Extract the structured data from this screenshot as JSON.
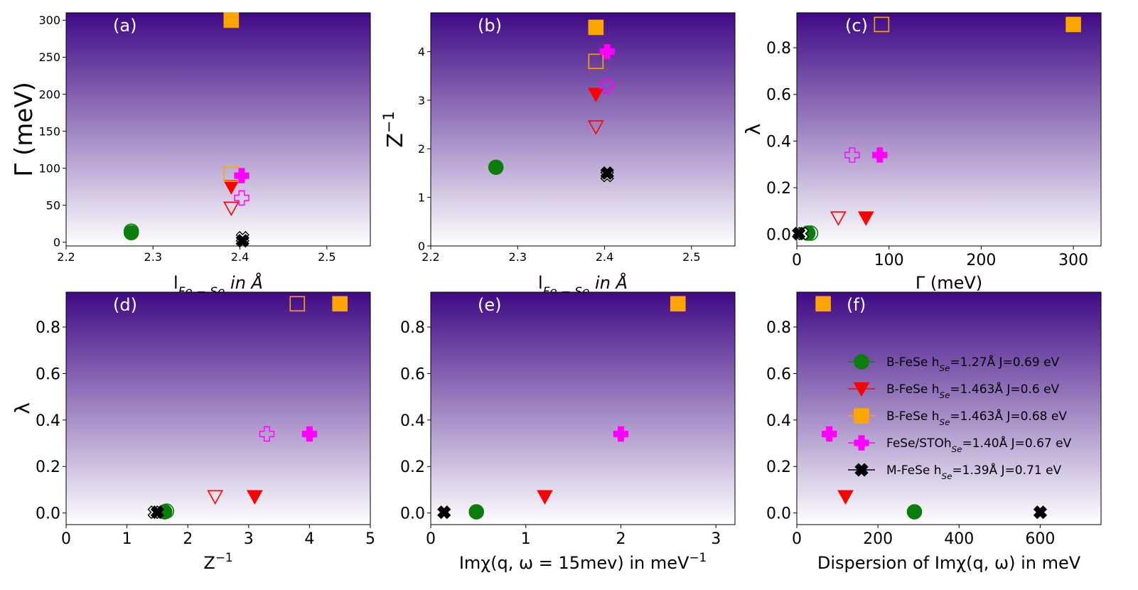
{
  "figure": {
    "gradient": {
      "top": "#3f0a85",
      "bottom": "#ffffff"
    },
    "marker_styles": {
      "green": {
        "shape": "circle",
        "color": "#0a7d0a"
      },
      "red": {
        "shape": "triangle-down",
        "color": "#ff0000"
      },
      "orange": {
        "shape": "square",
        "color": "#ffa500"
      },
      "magenta": {
        "shape": "plus",
        "color": "#ff00ff"
      },
      "black": {
        "shape": "x",
        "color": "#000000"
      }
    }
  },
  "legend": {
    "entries": [
      {
        "style": "green",
        "text": "B-FeSe h",
        "sub": "Se",
        "rest": "=1.27Å J=0.69 eV"
      },
      {
        "style": "red",
        "text": "B-FeSe h",
        "sub": "Se",
        "rest": "=1.463Å J=0.6 eV"
      },
      {
        "style": "orange",
        "text": "B-FeSe h",
        "sub": "Se",
        "rest": "=1.463Å J=0.68 eV"
      },
      {
        "style": "magenta",
        "text": "FeSe/STOh",
        "sub": "Se",
        "rest": "=1.40Å J=0.67 eV"
      },
      {
        "style": "black",
        "text": "M-FeSe h",
        "sub": "Se",
        "rest": "=1.39Å J=0.71 eV"
      }
    ]
  },
  "chart_data": [
    {
      "type": "scatter",
      "label": "(a)",
      "xlabel": "l",
      "xlabel_sub": "Fe − Se",
      "xlabel_rest": "in Å",
      "ylabel": "Γ (meV)",
      "xlim": [
        2.2,
        2.55
      ],
      "ylim": [
        -5,
        310
      ],
      "xticks": [
        "2.2",
        "2.3",
        "2.4",
        "2.5"
      ],
      "yticks": [
        "0",
        "50",
        "100",
        "150",
        "200",
        "250",
        "300"
      ],
      "points": [
        {
          "x": 2.275,
          "y": 15,
          "style": "green",
          "filled": false
        },
        {
          "x": 2.275,
          "y": 13,
          "style": "green",
          "filled": true
        },
        {
          "x": 2.39,
          "y": 46,
          "style": "red",
          "filled": false
        },
        {
          "x": 2.39,
          "y": 75,
          "style": "red",
          "filled": true
        },
        {
          "x": 2.39,
          "y": 92,
          "style": "orange",
          "filled": false
        },
        {
          "x": 2.39,
          "y": 300,
          "style": "orange",
          "filled": true
        },
        {
          "x": 2.402,
          "y": 60,
          "style": "magenta",
          "filled": false
        },
        {
          "x": 2.402,
          "y": 90,
          "style": "magenta",
          "filled": true
        },
        {
          "x": 2.403,
          "y": 6,
          "style": "black",
          "filled": false
        },
        {
          "x": 2.403,
          "y": 2,
          "style": "black",
          "filled": true
        }
      ]
    },
    {
      "type": "scatter",
      "label": "(b)",
      "xlabel": "l",
      "xlabel_sub": "Fe − Se",
      "xlabel_rest": "in Å",
      "ylabel": "Z",
      "ylabel_sup": "−1",
      "xlim": [
        2.2,
        2.55
      ],
      "ylim": [
        0,
        4.8
      ],
      "xticks": [
        "2.2",
        "2.3",
        "2.4",
        "2.5"
      ],
      "yticks": [
        "0",
        "1",
        "2",
        "3",
        "4"
      ],
      "points": [
        {
          "x": 2.275,
          "y": 1.62,
          "style": "green",
          "filled": true
        },
        {
          "x": 2.39,
          "y": 2.45,
          "style": "red",
          "filled": false
        },
        {
          "x": 2.39,
          "y": 3.12,
          "style": "red",
          "filled": true
        },
        {
          "x": 2.39,
          "y": 3.8,
          "style": "orange",
          "filled": false
        },
        {
          "x": 2.39,
          "y": 4.5,
          "style": "orange",
          "filled": true
        },
        {
          "x": 2.403,
          "y": 3.3,
          "style": "magenta",
          "filled": false
        },
        {
          "x": 2.403,
          "y": 4.0,
          "style": "magenta",
          "filled": true
        },
        {
          "x": 2.403,
          "y": 1.45,
          "style": "black",
          "filled": false
        },
        {
          "x": 2.403,
          "y": 1.5,
          "style": "black",
          "filled": true
        }
      ]
    },
    {
      "type": "scatter",
      "label": "(c)",
      "xlabel": "Γ (meV)",
      "ylabel": "λ",
      "xlim": [
        0,
        330
      ],
      "ylim": [
        -0.05,
        0.95
      ],
      "xticks": [
        "0",
        "100",
        "200",
        "300"
      ],
      "yticks": [
        "0.0",
        "0.2",
        "0.4",
        "0.6",
        "0.8"
      ],
      "points": [
        {
          "x": 15,
          "y": 0.005,
          "style": "green",
          "filled": false
        },
        {
          "x": 12,
          "y": 0.005,
          "style": "green",
          "filled": true
        },
        {
          "x": 45,
          "y": 0.07,
          "style": "red",
          "filled": false
        },
        {
          "x": 75,
          "y": 0.07,
          "style": "red",
          "filled": true
        },
        {
          "x": 92,
          "y": 0.9,
          "style": "orange",
          "filled": false
        },
        {
          "x": 300,
          "y": 0.9,
          "style": "orange",
          "filled": true
        },
        {
          "x": 60,
          "y": 0.34,
          "style": "magenta",
          "filled": false
        },
        {
          "x": 90,
          "y": 0.34,
          "style": "magenta",
          "filled": true
        },
        {
          "x": 6,
          "y": 0.003,
          "style": "black",
          "filled": false
        },
        {
          "x": 2,
          "y": 0.003,
          "style": "black",
          "filled": true
        }
      ]
    },
    {
      "type": "scatter",
      "label": "(d)",
      "xlabel": "Z",
      "xlabel_sup": "−1",
      "ylabel": "λ",
      "xlim": [
        0,
        5
      ],
      "ylim": [
        -0.05,
        0.95
      ],
      "xticks": [
        "0",
        "1",
        "2",
        "3",
        "4",
        "5"
      ],
      "yticks": [
        "0.0",
        "0.2",
        "0.4",
        "0.6",
        "0.8"
      ],
      "points": [
        {
          "x": 1.65,
          "y": 0.008,
          "style": "green",
          "filled": false
        },
        {
          "x": 1.62,
          "y": 0.005,
          "style": "green",
          "filled": true
        },
        {
          "x": 2.45,
          "y": 0.07,
          "style": "red",
          "filled": false
        },
        {
          "x": 3.1,
          "y": 0.07,
          "style": "red",
          "filled": true
        },
        {
          "x": 3.8,
          "y": 0.9,
          "style": "orange",
          "filled": false
        },
        {
          "x": 4.5,
          "y": 0.9,
          "style": "orange",
          "filled": true
        },
        {
          "x": 3.3,
          "y": 0.34,
          "style": "magenta",
          "filled": false
        },
        {
          "x": 4.0,
          "y": 0.34,
          "style": "magenta",
          "filled": true
        },
        {
          "x": 1.45,
          "y": 0.003,
          "style": "black",
          "filled": false
        },
        {
          "x": 1.5,
          "y": 0.003,
          "style": "black",
          "filled": true
        }
      ]
    },
    {
      "type": "scatter",
      "label": "(e)",
      "xlabel": "Imχ(q, ω = 15mev) in meV",
      "xlabel_sup": "−1",
      "ylabel": "",
      "xlim": [
        0,
        3.2
      ],
      "ylim": [
        -0.05,
        0.95
      ],
      "xticks": [
        "0",
        "1",
        "2",
        "3"
      ],
      "yticks": [
        "0.0",
        "0.2",
        "0.4",
        "0.6",
        "0.8"
      ],
      "points": [
        {
          "x": 0.48,
          "y": 0.005,
          "style": "green",
          "filled": true
        },
        {
          "x": 1.2,
          "y": 0.07,
          "style": "red",
          "filled": true
        },
        {
          "x": 2.6,
          "y": 0.9,
          "style": "orange",
          "filled": true
        },
        {
          "x": 2.0,
          "y": 0.34,
          "style": "magenta",
          "filled": true
        },
        {
          "x": 0.14,
          "y": 0.003,
          "style": "black",
          "filled": true
        }
      ]
    },
    {
      "type": "scatter",
      "label": "(f)",
      "xlabel": "Dispersion of Imχ(q, ω) in meV",
      "ylabel": "",
      "xlim": [
        0,
        750
      ],
      "ylim": [
        -0.05,
        0.95
      ],
      "xticks": [
        "0",
        "200",
        "400",
        "600"
      ],
      "yticks": [
        "0.0",
        "0.2",
        "0.4",
        "0.6",
        "0.8"
      ],
      "points": [
        {
          "x": 290,
          "y": 0.005,
          "style": "green",
          "filled": true
        },
        {
          "x": 120,
          "y": 0.07,
          "style": "red",
          "filled": true
        },
        {
          "x": 65,
          "y": 0.9,
          "style": "orange",
          "filled": true
        },
        {
          "x": 80,
          "y": 0.34,
          "style": "magenta",
          "filled": true
        },
        {
          "x": 600,
          "y": 0.003,
          "style": "black",
          "filled": true
        }
      ],
      "legend_location": "center-right"
    }
  ]
}
